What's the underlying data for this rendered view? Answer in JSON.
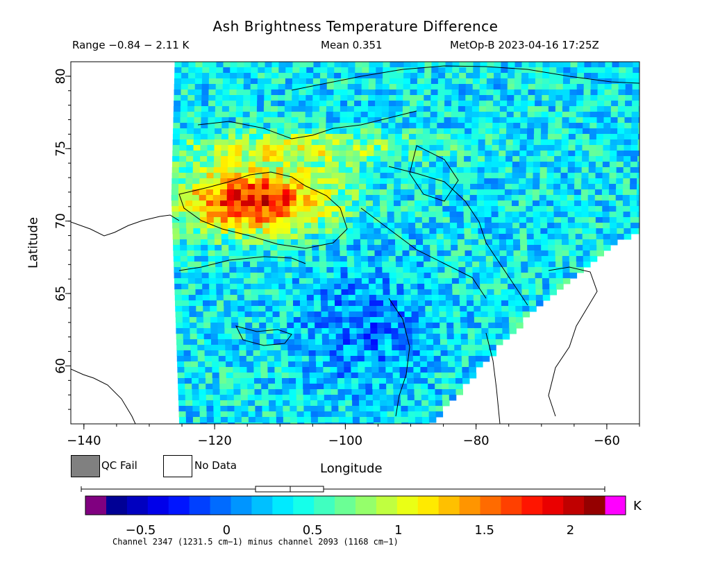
{
  "header": {
    "title": "Ash Brightness Temperature Difference",
    "range": "Range −0.84 − 2.11 K",
    "mean": "Mean 0.351",
    "satellite": "MetOp-B 2023-04-16 17:25Z"
  },
  "map": {
    "lon_range": [
      -142,
      -55
    ],
    "lat_range": [
      56,
      81
    ],
    "x_label": "Longitude",
    "y_label": "Latitude",
    "x_ticks": [
      -140,
      -120,
      -100,
      -80,
      -60
    ],
    "x_tick_labels": [
      "−140",
      "−120",
      "−100",
      "−80",
      "−60"
    ],
    "y_ticks": [
      60,
      65,
      70,
      75,
      80
    ],
    "y_tick_labels": [
      "60",
      "65",
      "70",
      "75",
      "80"
    ]
  },
  "legend": {
    "qc_fail": "QC Fail",
    "no_data": "No Data",
    "qc_color": "#808080",
    "no_data_color": "#ffffff"
  },
  "colorbar": {
    "min": -0.84,
    "max": 2.11,
    "ticks": [
      -0.5,
      0,
      0.5,
      1,
      1.5,
      2
    ],
    "tick_labels": [
      "−0.5",
      "0",
      "0.5",
      "1",
      "1.5",
      "2"
    ],
    "unit": "K",
    "under_color": "#800080",
    "over_color": "#ff00ff",
    "boxplot": {
      "whisker_low": -0.84,
      "q1": 0.15,
      "median": 0.35,
      "q3": 0.53,
      "whisker_high": 2.11
    }
  },
  "footnote": "Channel 2347 (1231.5 cm−1) minus channel 2093 (1168 cm−1)",
  "colors": {
    "palette": [
      "#000080",
      "#0000ff",
      "#0080ff",
      "#00ffff",
      "#80ff80",
      "#ffff00",
      "#ff8000",
      "#ff0000",
      "#800000"
    ]
  }
}
